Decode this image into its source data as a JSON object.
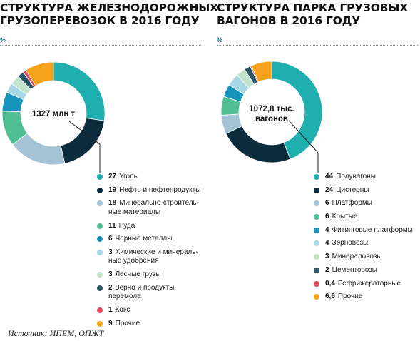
{
  "charts": [
    {
      "title_lines": [
        "Структура железнодорожных",
        "грузоперевозок в 2016 году"
      ],
      "unit": "%",
      "center": [
        "1327 млн т"
      ]
    },
    {
      "title_lines": [
        "Структура парка грузовых",
        "вагонов в 2016 году"
      ],
      "unit": "%",
      "center": [
        "1072,8 тыс.",
        "вагонов"
      ]
    }
  ],
  "chart_data": [
    {
      "type": "pie",
      "variant": "donut",
      "title": "Структура железнодорожных грузоперевозок в 2016 году",
      "unit": "%",
      "center_label": "1327 млн т",
      "legend_placement": "below-right",
      "slices": [
        {
          "value": 27,
          "value_label": "27",
          "label_lines": [
            "Уголь"
          ],
          "color": "#1fafaf"
        },
        {
          "value": 19,
          "value_label": "19",
          "label_lines": [
            "Нефть и нефтепродукты"
          ],
          "color": "#0c2c3e"
        },
        {
          "value": 18,
          "value_label": "18",
          "label_lines": [
            "Минерально-строитель-",
            "ные материалы"
          ],
          "color": "#a5c3d6"
        },
        {
          "value": 11,
          "value_label": "11",
          "label_lines": [
            "Руда"
          ],
          "color": "#4fbf93"
        },
        {
          "value": 6,
          "value_label": "6",
          "label_lines": [
            "Черные металлы"
          ],
          "color": "#1693bb"
        },
        {
          "value": 3,
          "value_label": "3",
          "label_lines": [
            "Химические и минераль-",
            "ные удобрения"
          ],
          "color": "#a8d8e6"
        },
        {
          "value": 3,
          "value_label": "3",
          "label_lines": [
            "Лесные грузы"
          ],
          "color": "#c2e4cd"
        },
        {
          "value": 2,
          "value_label": "2",
          "label_lines": [
            "Зерно и продукты",
            "перемола"
          ],
          "color": "#2a5564"
        },
        {
          "value": 1,
          "value_label": "1",
          "label_lines": [
            "Кокс"
          ],
          "color": "#e5485a"
        },
        {
          "value": 9,
          "value_label": "9",
          "label_lines": [
            "Прочие"
          ],
          "color": "#f4a31a"
        }
      ]
    },
    {
      "type": "pie",
      "variant": "donut",
      "title": "Структура парка грузовых вагонов в 2016 году",
      "unit": "%",
      "center_label": "1072,8 тыс. вагонов",
      "legend_placement": "below-right",
      "slices": [
        {
          "value": 44,
          "value_label": "44",
          "label_lines": [
            "Полувагоны"
          ],
          "color": "#1fafaf"
        },
        {
          "value": 24,
          "value_label": "24",
          "label_lines": [
            "Цистерны"
          ],
          "color": "#0c2c3e"
        },
        {
          "value": 6,
          "value_label": "6",
          "label_lines": [
            "Платформы"
          ],
          "color": "#a5c3d6"
        },
        {
          "value": 6,
          "value_label": "6",
          "label_lines": [
            "Крытые"
          ],
          "color": "#4fbf93"
        },
        {
          "value": 4,
          "value_label": "4",
          "label_lines": [
            "Фитинговые платформы"
          ],
          "color": "#1693bb"
        },
        {
          "value": 4,
          "value_label": "4",
          "label_lines": [
            "Зерновозы"
          ],
          "color": "#a8d8e6"
        },
        {
          "value": 3,
          "value_label": "3",
          "label_lines": [
            "Минераловозы"
          ],
          "color": "#c2e4cd"
        },
        {
          "value": 2,
          "value_label": "2",
          "label_lines": [
            "Цементовозы"
          ],
          "color": "#2a5564"
        },
        {
          "value": 0.4,
          "value_label": "0,4",
          "label_lines": [
            "Рефрижераторные"
          ],
          "color": "#e5485a"
        },
        {
          "value": 6.6,
          "value_label": "6,6",
          "label_lines": [
            "Прочие"
          ],
          "color": "#f4a31a"
        }
      ]
    }
  ],
  "source": "Источник: ИПЕМ, ОПЖТ"
}
